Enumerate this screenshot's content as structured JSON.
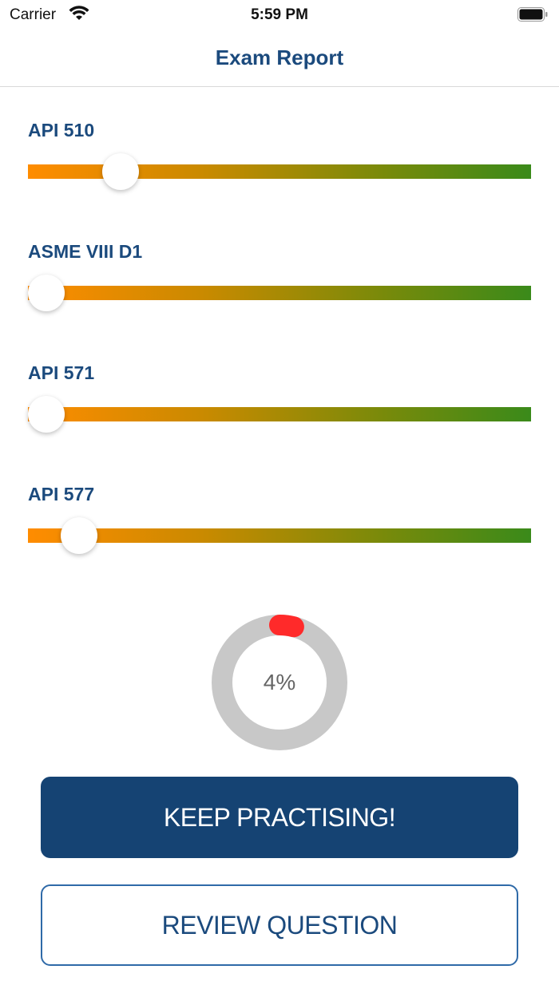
{
  "status_bar": {
    "carrier": "Carrier",
    "time": "5:59 PM"
  },
  "nav": {
    "title": "Exam Report"
  },
  "subjects": [
    {
      "label": "API 510",
      "progress": 0.16
    },
    {
      "label": "ASME VIII D1",
      "progress": 0.0
    },
    {
      "label": "API 571",
      "progress": 0.0
    },
    {
      "label": "API 577",
      "progress": 0.07
    }
  ],
  "score": {
    "percent_text": "4%",
    "percent": 4,
    "arc_color": "#ff2a2a",
    "track_color": "#c8c8c8"
  },
  "buttons": {
    "keep_practising": "KEEP PRACTISING!",
    "review_question": "REVIEW QUESTION"
  },
  "colors": {
    "brand": "#154373",
    "slider_start": "#ff8c00",
    "slider_end": "#3a8a1a"
  }
}
